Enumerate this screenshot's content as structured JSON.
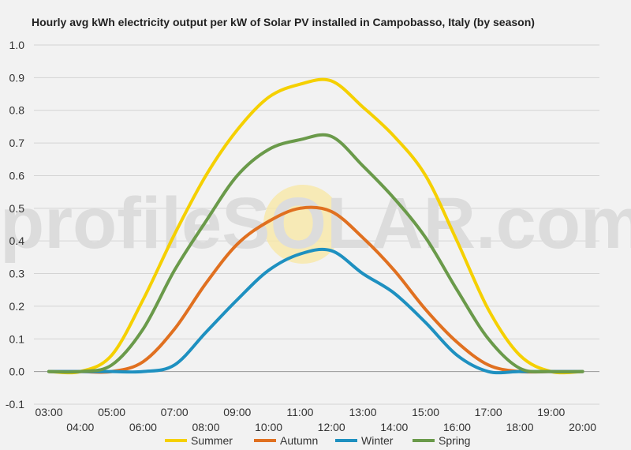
{
  "chart_data": {
    "type": "line",
    "title": "Hourly avg kWh electricity output per kW of Solar PV installed in Campobasso, Italy (by season)",
    "xlabel": "",
    "ylabel": "",
    "ylim": [
      -0.1,
      1.0
    ],
    "yticks": [
      "1.0",
      "0.9",
      "0.8",
      "0.7",
      "0.6",
      "0.5",
      "0.4",
      "0.3",
      "0.2",
      "0.1",
      "0.0",
      "-0.1"
    ],
    "categories": [
      "03:00",
      "04:00",
      "05:00",
      "06:00",
      "07:00",
      "08:00",
      "09:00",
      "10:00",
      "11:00",
      "12:00",
      "13:00",
      "14:00",
      "15:00",
      "16:00",
      "17:00",
      "18:00",
      "19:00",
      "20:00"
    ],
    "grid": true,
    "legend": "bottom",
    "series": [
      {
        "name": "Summer",
        "color": "#f5d000",
        "values": [
          0,
          0,
          0.05,
          0.22,
          0.42,
          0.6,
          0.74,
          0.84,
          0.88,
          0.89,
          0.81,
          0.72,
          0.6,
          0.4,
          0.19,
          0.05,
          0.0,
          0.0
        ]
      },
      {
        "name": "Autumn",
        "color": "#e07020",
        "values": [
          0,
          0,
          0,
          0.03,
          0.13,
          0.27,
          0.39,
          0.46,
          0.5,
          0.49,
          0.41,
          0.31,
          0.19,
          0.09,
          0.02,
          0.0,
          0.0,
          0.0
        ]
      },
      {
        "name": "Winter",
        "color": "#1e90c0",
        "values": [
          0,
          0,
          0,
          0,
          0.02,
          0.12,
          0.22,
          0.31,
          0.36,
          0.37,
          0.3,
          0.24,
          0.15,
          0.05,
          0.0,
          0.0,
          0.0,
          0.0
        ]
      },
      {
        "name": "Spring",
        "color": "#6a9a4a",
        "values": [
          0,
          0,
          0.02,
          0.13,
          0.31,
          0.46,
          0.6,
          0.68,
          0.71,
          0.72,
          0.63,
          0.53,
          0.41,
          0.25,
          0.1,
          0.01,
          0.0,
          0.0
        ]
      }
    ]
  },
  "watermark": {
    "text": "profileSOLAR.com"
  }
}
